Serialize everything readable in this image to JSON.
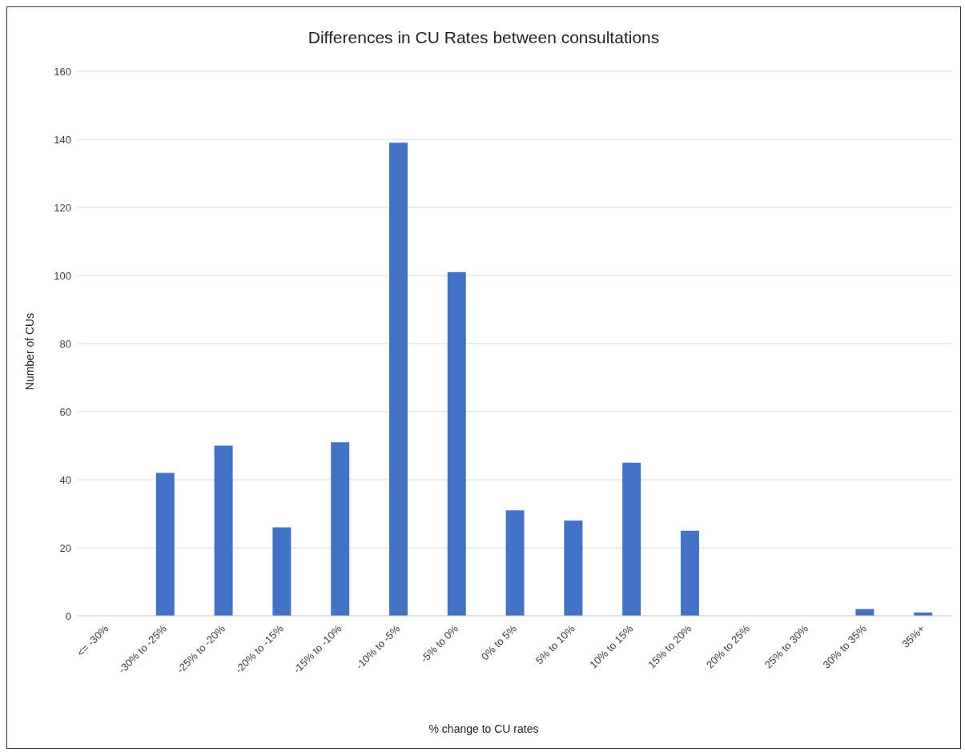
{
  "chart_data": {
    "type": "bar",
    "title": "Differences in CU Rates between consultations",
    "xlabel": "% change to CU rates",
    "ylabel": "Number of CUs",
    "categories": [
      "<= -30%",
      "-30% to -25%",
      "-25% to -20%",
      "-20% to -15%",
      "-15% to -10%",
      "-10% to -5%",
      "-5% to 0%",
      "0% to 5%",
      "5% to 10%",
      "10% to 15%",
      "15% to 20%",
      "20% to 25%",
      "25% to 30%",
      "30% to 35%",
      "35%+"
    ],
    "values": [
      0,
      42,
      50,
      26,
      51,
      139,
      101,
      31,
      28,
      45,
      25,
      0,
      0,
      2,
      1
    ],
    "color": "#4472c4",
    "ylim": [
      0,
      160
    ],
    "yticks": [
      0,
      20,
      40,
      60,
      80,
      100,
      120,
      140,
      160
    ],
    "grid": "y",
    "legend": false
  }
}
